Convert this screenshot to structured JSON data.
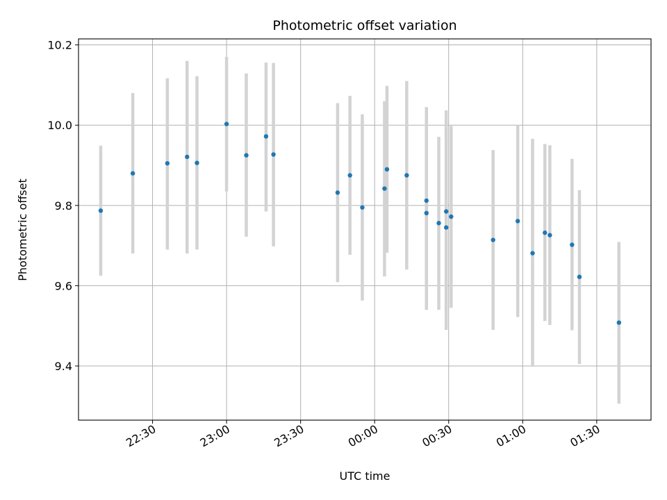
{
  "chart_data": {
    "type": "scatter",
    "title": "Photometric offset variation",
    "xlabel": "UTC time",
    "ylabel": "Photometric offset",
    "xlim": [
      "22:00",
      "01:52"
    ],
    "ylim": [
      9.265,
      10.215
    ],
    "x_ticks": [
      "22:30",
      "23:00",
      "23:30",
      "00:00",
      "00:30",
      "01:00",
      "01:30"
    ],
    "y_ticks": [
      "9.4",
      "9.6",
      "9.8",
      "10.0",
      "10.2"
    ],
    "grid": true,
    "colors": {
      "point": "#1f77b4",
      "errorbar": "#d3d3d3",
      "grid": "#b0b0b0"
    },
    "points": [
      {
        "time": "22:09",
        "y": 9.787,
        "y_low": 9.625,
        "y_high": 9.949
      },
      {
        "time": "22:22",
        "y": 9.88,
        "y_low": 9.68,
        "y_high": 10.08
      },
      {
        "time": "22:36",
        "y": 9.905,
        "y_low": 9.69,
        "y_high": 10.117
      },
      {
        "time": "22:44",
        "y": 9.921,
        "y_low": 9.68,
        "y_high": 10.16
      },
      {
        "time": "22:48",
        "y": 9.906,
        "y_low": 9.69,
        "y_high": 10.122
      },
      {
        "time": "23:00",
        "y": 10.003,
        "y_low": 9.835,
        "y_high": 10.17
      },
      {
        "time": "23:08",
        "y": 9.925,
        "y_low": 9.722,
        "y_high": 10.129
      },
      {
        "time": "23:16",
        "y": 9.972,
        "y_low": 9.785,
        "y_high": 10.156
      },
      {
        "time": "23:19",
        "y": 9.927,
        "y_low": 9.698,
        "y_high": 10.155
      },
      {
        "time": "23:45",
        "y": 9.832,
        "y_low": 9.609,
        "y_high": 10.055
      },
      {
        "time": "23:50",
        "y": 9.875,
        "y_low": 9.677,
        "y_high": 10.073
      },
      {
        "time": "23:55",
        "y": 9.795,
        "y_low": 9.563,
        "y_high": 10.027
      },
      {
        "time": "00:04",
        "y": 9.842,
        "y_low": 9.623,
        "y_high": 10.06
      },
      {
        "time": "00:05",
        "y": 9.89,
        "y_low": 9.682,
        "y_high": 10.098
      },
      {
        "time": "00:13",
        "y": 9.875,
        "y_low": 9.64,
        "y_high": 10.11
      },
      {
        "time": "00:21",
        "y": 9.812,
        "y_low": 9.6,
        "y_high": 10.024
      },
      {
        "time": "00:21",
        "y": 9.781,
        "y_low": 9.54,
        "y_high": 10.045
      },
      {
        "time": "00:26",
        "y": 9.756,
        "y_low": 9.54,
        "y_high": 9.971
      },
      {
        "time": "00:29",
        "y": 9.785,
        "y_low": 9.535,
        "y_high": 10.037
      },
      {
        "time": "00:29",
        "y": 9.745,
        "y_low": 9.49,
        "y_high": 10.0
      },
      {
        "time": "00:31",
        "y": 9.772,
        "y_low": 9.545,
        "y_high": 9.998
      },
      {
        "time": "00:48",
        "y": 9.714,
        "y_low": 9.49,
        "y_high": 9.938
      },
      {
        "time": "00:58",
        "y": 9.761,
        "y_low": 9.522,
        "y_high": 10.0
      },
      {
        "time": "01:04",
        "y": 9.681,
        "y_low": 9.398,
        "y_high": 9.966
      },
      {
        "time": "01:09",
        "y": 9.732,
        "y_low": 9.512,
        "y_high": 9.953
      },
      {
        "time": "01:11",
        "y": 9.726,
        "y_low": 9.502,
        "y_high": 9.95
      },
      {
        "time": "01:20",
        "y": 9.702,
        "y_low": 9.489,
        "y_high": 9.916
      },
      {
        "time": "01:23",
        "y": 9.622,
        "y_low": 9.405,
        "y_high": 9.838
      },
      {
        "time": "01:39",
        "y": 9.508,
        "y_low": 9.306,
        "y_high": 9.709
      }
    ]
  }
}
